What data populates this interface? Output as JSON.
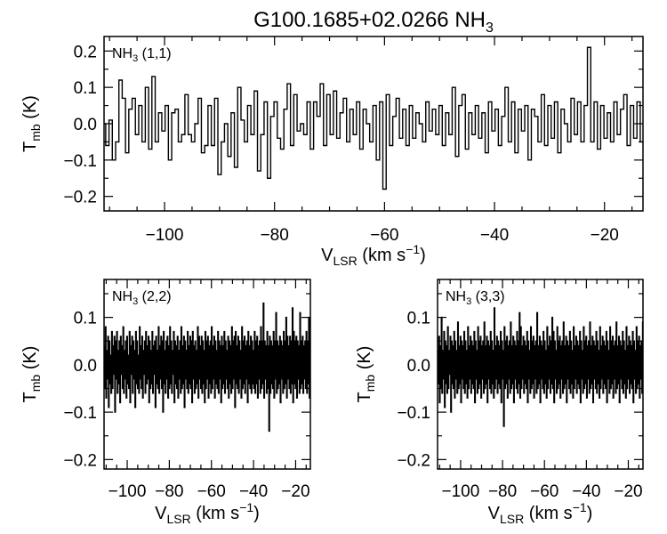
{
  "figure": {
    "title_main": "G100.1685+02.0266 NH",
    "title_sub": "3"
  },
  "chart_data": [
    {
      "type": "line",
      "step": true,
      "panel": "top",
      "label_main": "NH",
      "label_sub": "3",
      "label_rest": " (1,1)",
      "xlabel_main": "V",
      "xlabel_sub": "LSR",
      "xlabel_rest": " (km s",
      "xlabel_sup": "−1",
      "xlabel_end": ")",
      "ylabel_main": "T",
      "ylabel_sub": "mb",
      "ylabel_rest": " (K)",
      "xlim": [
        -111,
        -13
      ],
      "ylim": [
        -0.24,
        0.24
      ],
      "xticks": [
        -100,
        -80,
        -60,
        -40,
        -20
      ],
      "xtick_labels": [
        "−100",
        "−80",
        "−60",
        "−40",
        "−20"
      ],
      "yticks": [
        -0.2,
        -0.1,
        0.0,
        0.1,
        0.2
      ],
      "ytick_labels": [
        "−0.2",
        "−0.1",
        "0.0",
        "0.1",
        "0.2"
      ],
      "grid": false,
      "x_start": -111,
      "x_step": 0.3,
      "values": [
        0.0,
        -0.06,
        -0.06,
        0.01,
        0.01,
        -0.1,
        -0.1,
        -0.05,
        -0.05,
        0.12,
        0.12,
        0.07,
        0.07,
        -0.08,
        -0.08,
        0.04,
        0.04,
        0.07,
        0.07,
        -0.03,
        -0.03,
        0.05,
        0.05,
        -0.05,
        -0.05,
        0.1,
        0.1,
        -0.07,
        -0.07,
        0.13,
        0.13,
        -0.05,
        -0.05,
        0.03,
        0.03,
        -0.02,
        -0.02,
        0.05,
        0.05,
        -0.1,
        -0.1,
        0.03,
        0.03,
        0.04,
        0.04,
        -0.05,
        -0.05,
        -0.03,
        -0.03,
        0.08,
        0.08,
        -0.03,
        -0.03,
        -0.05,
        -0.05,
        0.0,
        0.0,
        0.07,
        0.07,
        -0.08,
        -0.08,
        -0.06,
        -0.06,
        0.05,
        0.05,
        -0.06,
        -0.06,
        0.07,
        0.07,
        -0.14,
        -0.14,
        -0.05,
        -0.05,
        0.0,
        0.0,
        -0.09,
        -0.09,
        0.03,
        0.03,
        -0.12,
        -0.12,
        0.1,
        0.1,
        0.01,
        0.01,
        -0.05,
        -0.05,
        0.05,
        0.05,
        -0.03,
        -0.03,
        0.09,
        0.09,
        -0.13,
        -0.13,
        -0.03,
        -0.03,
        0.06,
        0.06,
        -0.15,
        -0.15,
        0.02,
        0.02,
        0.06,
        0.06,
        -0.04,
        -0.04,
        -0.07,
        -0.07,
        0.04,
        0.04,
        0.11,
        0.11,
        -0.06,
        -0.06,
        0.08,
        0.08,
        -0.02,
        -0.02,
        0.0,
        0.0,
        -0.03,
        -0.03,
        0.06,
        0.06,
        -0.07,
        -0.07,
        0.06,
        0.06,
        0.02,
        0.02,
        0.11,
        0.11,
        -0.06,
        -0.06,
        0.08,
        0.08,
        -0.03,
        -0.03,
        0.09,
        0.09,
        -0.04,
        -0.04,
        0.03,
        0.03,
        0.07,
        0.07,
        -0.05,
        -0.05,
        0.04,
        0.04,
        -0.03,
        -0.03,
        0.06,
        0.06,
        -0.07,
        -0.07,
        0.04,
        0.04,
        0.0,
        0.0,
        -0.05,
        -0.05,
        0.05,
        0.05,
        -0.1,
        -0.1,
        0.06,
        0.06,
        -0.18,
        -0.18,
        0.08,
        0.08,
        -0.06,
        -0.06,
        0.02,
        0.02,
        0.07,
        0.07,
        -0.04,
        -0.04,
        0.04,
        0.04,
        -0.06,
        -0.06,
        0.05,
        0.05,
        -0.04,
        -0.04,
        0.03,
        0.03,
        0.0,
        0.0,
        -0.05,
        -0.05,
        0.06,
        0.06,
        -0.02,
        -0.02,
        0.04,
        0.04,
        -0.03,
        -0.03,
        0.05,
        0.05,
        -0.06,
        -0.06,
        0.03,
        0.03,
        -0.03,
        -0.03,
        0.1,
        0.1,
        -0.09,
        -0.09,
        0.05,
        0.05,
        0.08,
        0.08,
        -0.07,
        -0.07,
        0.03,
        0.03,
        -0.03,
        -0.03,
        0.05,
        0.05,
        -0.04,
        -0.04,
        0.03,
        0.03,
        -0.08,
        -0.08,
        0.06,
        0.06,
        -0.02,
        -0.02,
        0.04,
        0.04,
        -0.06,
        -0.06,
        0.02,
        0.02,
        0.1,
        0.1,
        -0.05,
        -0.05,
        0.06,
        0.06,
        -0.08,
        -0.08,
        0.04,
        0.04,
        -0.02,
        -0.02,
        0.05,
        0.05,
        -0.1,
        -0.1,
        0.04,
        0.04,
        0.02,
        0.02,
        -0.05,
        -0.05,
        0.08,
        0.08,
        -0.06,
        -0.06,
        0.05,
        0.05,
        -0.04,
        -0.04,
        0.06,
        0.06,
        -0.08,
        -0.08,
        0.04,
        0.04,
        0.0,
        0.0,
        -0.05,
        -0.05,
        0.07,
        0.07,
        -0.03,
        -0.03,
        0.06,
        0.06,
        -0.05,
        -0.05,
        0.05,
        0.05,
        0.21,
        0.21,
        -0.05,
        -0.05,
        0.06,
        0.06,
        -0.07,
        -0.07,
        0.05,
        0.05,
        -0.04,
        -0.04,
        0.03,
        0.03,
        -0.05,
        -0.05,
        0.06,
        0.06,
        -0.03,
        -0.03,
        0.04,
        0.04,
        0.08,
        0.08,
        -0.06,
        -0.06,
        0.05,
        0.05,
        -0.04,
        -0.04,
        0.06,
        0.06,
        -0.05,
        -0.05,
        0.07,
        0.07,
        -0.03,
        -0.03,
        0.05,
        0.05,
        -0.06,
        -0.06,
        0.04,
        0.04,
        0.02,
        0.02,
        -0.05,
        -0.05,
        0.06,
        0.06,
        -0.07,
        -0.07,
        0.05,
        0.05,
        -0.04,
        -0.04,
        0.08,
        0.08,
        -0.06,
        -0.06,
        0.04,
        0.04,
        -0.02,
        -0.02,
        0.05,
        0.05,
        -0.05,
        -0.05,
        0.04,
        0.04,
        0.07,
        0.07,
        -0.03,
        -0.03,
        0.05,
        0.05,
        -0.05,
        -0.05,
        0.06,
        0.06,
        -0.04,
        -0.04,
        0.03,
        0.03,
        -0.06,
        -0.06,
        0.05,
        0.05,
        -0.08,
        -0.08,
        0.04,
        0.04,
        0.07,
        0.07,
        -0.03,
        -0.03,
        0.05,
        0.05,
        0.0,
        0.0,
        -0.05,
        -0.05,
        0.04,
        0.04,
        -0.03,
        -0.03,
        0.05,
        0.05,
        0.03,
        0.03,
        -0.05,
        -0.05,
        0.04,
        0.04,
        0.05,
        0.05,
        -0.1,
        -0.1,
        -0.08,
        -0.08,
        0.04,
        0.04,
        -0.09
      ]
    },
    {
      "type": "line",
      "step": true,
      "panel": "bottom-left",
      "label_main": "NH",
      "label_sub": "3",
      "label_rest": " (2,2)",
      "xlabel_main": "V",
      "xlabel_sub": "LSR",
      "xlabel_rest": " (km s",
      "xlabel_sup": "−1",
      "xlabel_end": ")",
      "ylabel_main": "T",
      "ylabel_sub": "mb",
      "ylabel_rest": " (K)",
      "xlim": [
        -111,
        -13
      ],
      "ylim": [
        -0.22,
        0.18
      ],
      "xticks": [
        -100,
        -80,
        -60,
        -40,
        -20
      ],
      "xtick_labels": [
        "−100",
        "−80",
        "−60",
        "−40",
        "−20"
      ],
      "yticks": [
        -0.2,
        -0.1,
        0.0,
        0.1
      ],
      "ytick_labels": [
        "−0.2",
        "−0.1",
        "0.0",
        "0.1"
      ],
      "grid": false,
      "x_start": -111,
      "x_step": 0.3,
      "values": [
        0.04,
        -0.05,
        0.08,
        -0.07,
        0.03,
        -0.03,
        0.06,
        -0.09,
        0.05,
        -0.04,
        0.02,
        -0.06,
        0.07,
        -0.05,
        0.04,
        -0.02,
        0.06,
        -0.1,
        0.05,
        -0.03,
        0.07,
        -0.06,
        0.03,
        -0.04,
        0.05,
        -0.08,
        0.06,
        -0.02,
        0.04,
        -0.05,
        0.08,
        -0.06,
        0.03,
        -0.03,
        0.05,
        -0.07,
        0.06,
        -0.04,
        0.02,
        -0.05,
        0.07,
        -0.08,
        0.04,
        -0.02,
        0.06,
        -0.06,
        0.05,
        -0.03,
        0.03,
        -0.09,
        0.07,
        -0.04,
        0.05,
        -0.05,
        0.02,
        -0.06,
        0.08,
        -0.03,
        0.04,
        -0.05,
        0.06,
        -0.07,
        0.03,
        -0.02,
        0.05,
        -0.06,
        0.07,
        -0.04,
        0.04,
        -0.03,
        0.06,
        -0.08,
        0.05,
        -0.05,
        0.03,
        -0.04,
        0.07,
        -0.06,
        0.04,
        -0.02,
        0.05,
        -0.09,
        0.06,
        -0.04,
        0.03,
        -0.05,
        0.08,
        -0.06,
        0.04,
        -0.03,
        0.06,
        -0.05,
        0.05,
        -0.1,
        0.07,
        -0.04,
        0.03,
        -0.06,
        0.05,
        -0.03,
        0.06,
        -0.07,
        0.04,
        -0.05,
        0.08,
        -0.04,
        0.05,
        -0.06,
        0.03,
        -0.02,
        0.07,
        -0.08,
        0.05,
        -0.04,
        0.04,
        -0.05,
        0.06,
        -0.07,
        0.03,
        -0.03,
        0.05,
        -0.06,
        0.08,
        -0.05,
        0.04,
        -0.04,
        0.06,
        -0.09,
        0.05,
        -0.03,
        0.03,
        -0.05,
        0.07,
        -0.06,
        0.04,
        -0.04,
        0.06,
        -0.05,
        0.05,
        -0.08,
        0.07,
        -0.03,
        0.04,
        -0.06,
        0.05,
        -0.05,
        0.03,
        -0.04,
        0.08,
        -0.07,
        0.06,
        -0.03,
        0.04,
        -0.05,
        0.06,
        -0.06,
        0.05,
        -0.04,
        0.03,
        -0.08,
        0.07,
        -0.05,
        0.05,
        -0.03,
        0.06,
        -0.07,
        0.04,
        -0.04,
        0.05,
        -0.06,
        0.08,
        -0.05,
        0.04,
        -0.03,
        0.06,
        -0.07,
        0.05,
        -0.04,
        0.03,
        -0.05,
        0.07,
        -0.06,
        0.05,
        -0.03,
        0.04,
        -0.08,
        0.06,
        -0.05,
        0.04,
        -0.04,
        0.07,
        -0.06,
        0.05,
        -0.03,
        0.03,
        -0.05,
        0.06,
        -0.07,
        0.05,
        -0.04,
        0.04,
        -0.06,
        0.08,
        -0.05,
        0.05,
        -0.03,
        0.06,
        -0.09,
        0.07,
        -0.04,
        0.04,
        -0.05,
        0.06,
        -0.06,
        0.05,
        -0.03,
        0.03,
        -0.07,
        0.08,
        -0.05,
        0.05,
        -0.04,
        0.06,
        -0.06,
        0.04,
        -0.03,
        0.05,
        -0.08,
        0.07,
        -0.04,
        0.04,
        -0.05,
        0.06,
        -0.06,
        0.05,
        -0.04,
        0.03,
        -0.05,
        0.07,
        -0.06,
        0.05,
        -0.04,
        0.06,
        -0.07,
        0.04,
        -0.03,
        0.05,
        -0.06,
        0.08,
        -0.05,
        0.05,
        -0.04,
        0.13,
        -0.07,
        0.05,
        -0.03,
        0.04,
        -0.06,
        0.07,
        -0.05,
        0.04,
        -0.14,
        0.06,
        -0.06,
        0.05,
        -0.04,
        0.04,
        -0.05,
        0.07,
        -0.07,
        0.05,
        -0.03,
        0.11,
        -0.06,
        0.05,
        -0.05,
        0.04,
        -0.04,
        0.06,
        -0.08,
        0.05,
        -0.03,
        0.04,
        -0.06,
        0.07,
        -0.05,
        0.05,
        -0.04,
        0.1,
        -0.07,
        0.06,
        -0.03,
        0.04,
        -0.05,
        0.06,
        -0.06,
        0.05,
        -0.04,
        0.12,
        -0.08,
        0.07,
        -0.04,
        0.05,
        -0.05,
        0.06,
        -0.07,
        0.05,
        -0.03,
        0.04,
        -0.06,
        0.11,
        -0.05,
        0.05,
        -0.04,
        0.06,
        -0.06,
        0.04,
        -0.03,
        0.05,
        -0.05,
        0.07,
        -0.06,
        0.05,
        -0.04,
        0.1,
        -0.07,
        0.05,
        -0.03,
        0.04,
        -0.06,
        0.08,
        -0.05,
        0.05,
        -0.04,
        0.06,
        -0.06,
        0.04,
        -0.03,
        0.05,
        -0.07,
        0.11,
        -0.05,
        0.05,
        -0.04,
        0.06,
        -0.08,
        0.05,
        -0.03,
        0.04,
        -0.05,
        0.07,
        -0.06,
        0.05,
        -0.04,
        0.06,
        -0.07,
        0.1,
        -0.03,
        0.05,
        -0.06,
        0.07,
        -0.05,
        0.05,
        -0.04,
        0.04,
        -0.06,
        0.05,
        -0.03,
        0.04,
        -0.05,
        0.06,
        -0.07,
        0.05,
        -0.09,
        0.05,
        -0.05
      ]
    },
    {
      "type": "line",
      "step": true,
      "panel": "bottom-right",
      "label_main": "NH",
      "label_sub": "3",
      "label_rest": " (3,3)",
      "xlabel_main": "V",
      "xlabel_sub": "LSR",
      "xlabel_rest": " (km s",
      "xlabel_sup": "−1",
      "xlabel_end": ")",
      "ylabel_main": "T",
      "ylabel_sub": "mb",
      "ylabel_rest": " (K)",
      "xlim": [
        -111,
        -13
      ],
      "ylim": [
        -0.22,
        0.18
      ],
      "xticks": [
        -100,
        -80,
        -60,
        -40,
        -20
      ],
      "xtick_labels": [
        "−100",
        "−80",
        "−60",
        "−40",
        "−20"
      ],
      "yticks": [
        -0.2,
        -0.1,
        0.0,
        0.1
      ],
      "ytick_labels": [
        "−0.2",
        "−0.1",
        "0.0",
        "0.1"
      ],
      "grid": false,
      "x_start": -111,
      "x_step": 0.3,
      "values": [
        0.03,
        -0.04,
        0.06,
        -0.08,
        0.04,
        -0.05,
        0.1,
        -0.06,
        0.03,
        -0.03,
        0.07,
        -0.09,
        0.05,
        -0.04,
        0.04,
        -0.06,
        0.08,
        -0.05,
        0.03,
        -0.02,
        0.06,
        -0.1,
        0.05,
        -0.04,
        0.04,
        -0.05,
        0.07,
        -0.07,
        0.05,
        -0.03,
        0.03,
        -0.06,
        0.09,
        -0.05,
        0.04,
        -0.04,
        0.06,
        -0.08,
        0.05,
        -0.03,
        0.04,
        -0.05,
        0.07,
        -0.06,
        0.05,
        -0.04,
        0.03,
        -0.07,
        0.08,
        -0.05,
        0.04,
        -0.03,
        0.06,
        -0.06,
        0.05,
        -0.04,
        0.04,
        -0.05,
        0.07,
        -0.08,
        0.05,
        -0.03,
        0.03,
        -0.06,
        0.08,
        -0.05,
        0.05,
        -0.04,
        0.06,
        -0.07,
        0.04,
        -0.03,
        0.05,
        -0.06,
        0.09,
        -0.05,
        0.04,
        -0.04,
        0.06,
        -0.08,
        0.05,
        -0.03,
        0.04,
        -0.05,
        0.07,
        -0.06,
        0.05,
        -0.04,
        0.03,
        -0.07,
        0.12,
        -0.05,
        0.04,
        -0.03,
        0.06,
        -0.06,
        0.05,
        -0.04,
        0.04,
        -0.05,
        0.07,
        -0.08,
        0.05,
        -0.03,
        0.03,
        -0.13,
        0.08,
        -0.05,
        0.05,
        -0.04,
        0.06,
        -0.07,
        0.04,
        -0.03,
        0.05,
        -0.06,
        0.09,
        -0.05,
        0.04,
        -0.04,
        0.06,
        -0.08,
        0.05,
        -0.03,
        0.04,
        -0.05,
        0.07,
        -0.06,
        0.05,
        -0.04,
        0.11,
        -0.07,
        0.08,
        -0.05,
        0.04,
        -0.03,
        0.06,
        -0.06,
        0.05,
        -0.04,
        0.04,
        -0.05,
        0.07,
        -0.08,
        0.05,
        -0.03,
        0.03,
        -0.06,
        0.08,
        -0.05,
        0.05,
        -0.04,
        0.06,
        -0.07,
        0.04,
        -0.03,
        0.05,
        -0.06,
        0.11,
        -0.05,
        0.04,
        -0.04,
        0.06,
        -0.08,
        0.05,
        -0.03,
        0.04,
        -0.05,
        0.07,
        -0.06,
        0.05,
        -0.04,
        0.03,
        -0.07,
        0.08,
        -0.05,
        0.04,
        -0.03,
        0.06,
        -0.06,
        0.05,
        -0.04,
        0.1,
        -0.05,
        0.07,
        -0.08,
        0.05,
        -0.03,
        0.03,
        -0.06,
        0.08,
        -0.05,
        0.05,
        -0.04,
        0.06,
        -0.07,
        0.04,
        -0.03,
        0.05,
        -0.06,
        0.09,
        -0.05,
        0.04,
        -0.04,
        0.06,
        -0.08,
        0.05,
        -0.03,
        0.04,
        -0.05,
        0.07,
        -0.06,
        0.05,
        -0.04,
        0.03,
        -0.07,
        0.08,
        -0.05,
        0.04,
        -0.03,
        0.06,
        -0.06,
        0.05,
        -0.04,
        0.04,
        -0.05,
        0.07,
        -0.08,
        0.05,
        -0.03,
        0.03,
        -0.06,
        0.08,
        -0.05,
        0.05,
        -0.04,
        0.06,
        -0.07,
        0.04,
        -0.03,
        0.05,
        -0.06,
        0.09,
        -0.05,
        0.04,
        -0.04,
        0.06,
        -0.08,
        0.05,
        -0.03,
        0.04,
        -0.05,
        0.07,
        -0.06,
        0.05,
        -0.04,
        0.03,
        -0.07,
        0.08,
        -0.05,
        0.04,
        -0.03,
        0.06,
        -0.06,
        0.05,
        -0.04,
        0.04,
        -0.05,
        0.07,
        -0.08,
        0.05,
        -0.03,
        0.03,
        -0.06,
        0.08,
        -0.05,
        0.05,
        -0.04,
        0.06,
        -0.07,
        0.04,
        -0.03,
        0.05,
        -0.06,
        0.09,
        -0.05,
        0.04,
        -0.04,
        0.06,
        -0.08,
        0.05,
        -0.03,
        0.04,
        -0.05,
        0.07,
        -0.06,
        0.05,
        -0.04,
        0.03,
        -0.07,
        0.08,
        -0.05,
        0.04,
        -0.03,
        0.06,
        -0.06,
        0.05,
        -0.04,
        0.04,
        -0.05,
        0.07,
        -0.08,
        0.05,
        -0.03,
        0.03,
        -0.06,
        0.08,
        -0.05,
        0.05,
        -0.04,
        0.06,
        -0.07,
        0.04,
        -0.03,
        0.05,
        -0.06,
        0.09,
        -0.05,
        0.04,
        -0.04,
        0.06,
        -0.08,
        0.05,
        -0.03,
        0.04,
        -0.05,
        0.07,
        -0.06,
        0.05,
        -0.04,
        0.03,
        -0.07,
        0.08,
        -0.05,
        0.04,
        -0.03,
        0.06,
        -0.06,
        0.05,
        -0.04,
        0.04,
        -0.05,
        0.07,
        -0.08,
        0.12,
        -0.03,
        0.03,
        -0.06,
        0.08,
        -0.05,
        0.05,
        -0.04,
        0.06,
        -0.07,
        0.04,
        -0.03,
        0.05,
        -0.06,
        0.09,
        -0.05
      ]
    }
  ]
}
